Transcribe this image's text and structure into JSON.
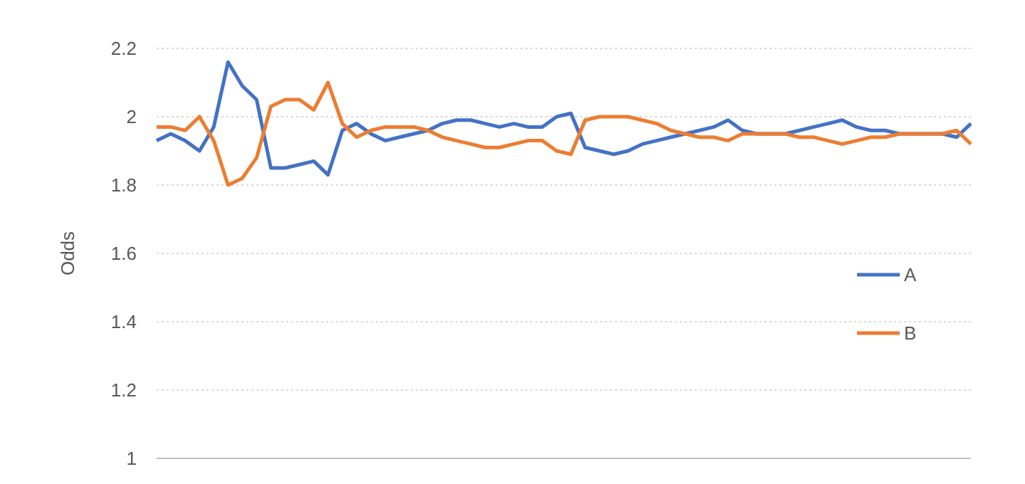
{
  "chart_data": {
    "type": "line",
    "ylabel": "Odds",
    "categories": [
      null,
      null,
      null,
      null,
      null,
      null,
      null,
      null,
      null,
      null,
      null,
      null,
      null,
      null,
      null,
      null,
      null,
      null,
      null,
      null,
      null,
      null,
      null,
      null,
      null,
      null,
      null,
      null,
      null,
      null,
      null,
      null,
      null,
      null,
      null,
      null,
      null,
      null,
      null,
      null,
      null,
      null,
      null,
      null,
      null,
      null,
      null,
      null,
      null,
      null,
      null,
      null,
      null,
      null,
      null,
      null,
      null,
      null
    ],
    "series": [
      {
        "name": "A",
        "color": "#4472c4",
        "values": [
          1.93,
          1.95,
          1.93,
          1.9,
          1.97,
          2.16,
          2.09,
          2.05,
          1.85,
          1.85,
          1.86,
          1.87,
          1.83,
          1.96,
          1.98,
          1.95,
          1.93,
          1.94,
          1.95,
          1.96,
          1.98,
          1.99,
          1.99,
          1.98,
          1.97,
          1.98,
          1.97,
          1.97,
          2.0,
          2.01,
          1.91,
          1.9,
          1.89,
          1.9,
          1.92,
          1.93,
          1.94,
          1.95,
          1.96,
          1.97,
          1.99,
          1.96,
          1.95,
          1.95,
          1.95,
          1.96,
          1.97,
          1.98,
          1.99,
          1.97,
          1.96,
          1.96,
          1.95,
          1.95,
          1.95,
          1.95,
          1.94,
          1.98
        ]
      },
      {
        "name": "B",
        "color": "#ed7d31",
        "values": [
          1.97,
          1.97,
          1.96,
          2.0,
          1.93,
          1.8,
          1.82,
          1.88,
          2.03,
          2.05,
          2.05,
          2.02,
          2.1,
          1.98,
          1.94,
          1.96,
          1.97,
          1.97,
          1.97,
          1.96,
          1.94,
          1.93,
          1.92,
          1.91,
          1.91,
          1.92,
          1.93,
          1.93,
          1.9,
          1.89,
          1.99,
          2.0,
          2.0,
          2.0,
          1.99,
          1.98,
          1.96,
          1.95,
          1.94,
          1.94,
          1.93,
          1.95,
          1.95,
          1.95,
          1.95,
          1.94,
          1.94,
          1.93,
          1.92,
          1.93,
          1.94,
          1.94,
          1.95,
          1.95,
          1.95,
          1.95,
          1.96,
          1.92
        ]
      }
    ],
    "ylim": [
      1,
      2.2
    ],
    "yticks": [
      1,
      1.2,
      1.4,
      1.6,
      1.8,
      2,
      2.2
    ],
    "grid": "y",
    "legend": "right",
    "line_style": "solid",
    "marker": "none"
  }
}
